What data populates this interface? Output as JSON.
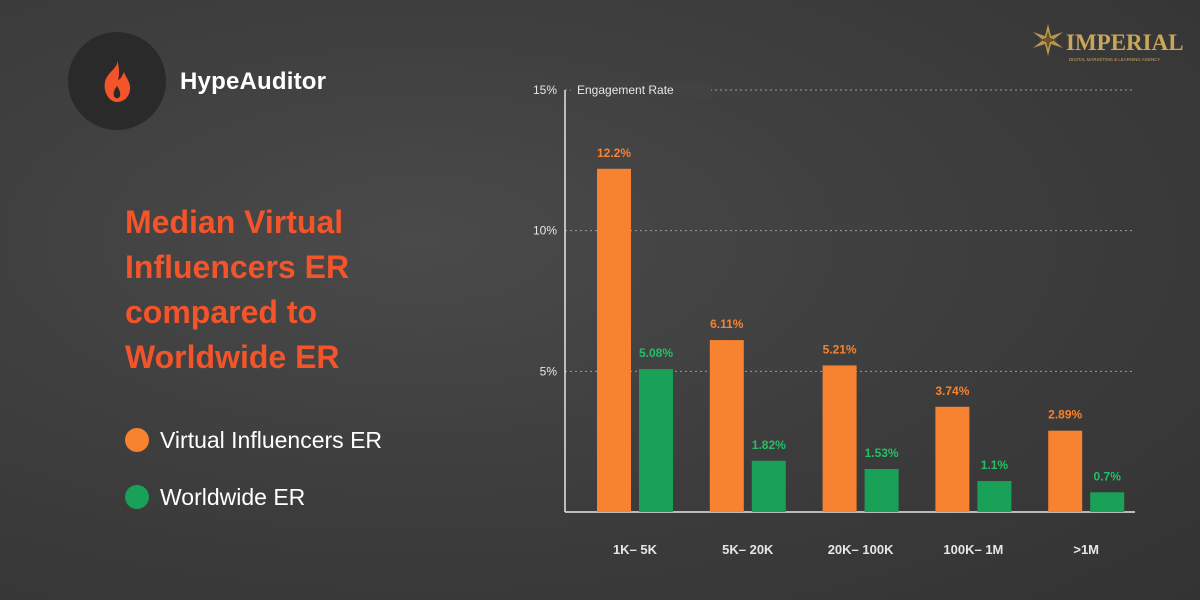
{
  "brand": {
    "name": "HypeAuditor",
    "icon": "flame-icon"
  },
  "partner": {
    "name": "IMPERIAL",
    "tagline": "DIGITAL MARKETING & LEARNING AGENCY",
    "icon": "star-emblem-icon"
  },
  "headline": "Median Virtual Influencers ER compared to Worldwide ER",
  "legend": [
    {
      "label": "Virtual Influencers ER",
      "color": "#f7822f"
    },
    {
      "label": "Worldwide ER",
      "color": "#1aa158"
    }
  ],
  "colors": {
    "virtual": "#f7822f",
    "worldwide": "#1aa158",
    "virtual_label": "#f7822f",
    "worldwide_label": "#22c066",
    "headline": "#f4542a",
    "axis": "#e6e6e6",
    "tick_text": "#e6e6e6",
    "grid": "#9a9a9a"
  },
  "chart_data": {
    "type": "bar",
    "title": "Median Virtual Influencers ER compared to Worldwide ER",
    "ylabel": "Engagement Rate",
    "xlabel": "",
    "categories": [
      "1K– 5K",
      "5K– 20K",
      "20K– 100K",
      "100K– 1M",
      ">1M"
    ],
    "series": [
      {
        "name": "Virtual Influencers ER",
        "values": [
          12.2,
          6.11,
          5.21,
          3.74,
          2.89
        ],
        "labels": [
          "12.2%",
          "6.11%",
          "5.21%",
          "3.74%",
          "2.89%"
        ]
      },
      {
        "name": "Worldwide ER",
        "values": [
          5.08,
          1.82,
          1.53,
          1.1,
          0.7
        ],
        "labels": [
          "5.08%",
          "1.82%",
          "1.53%",
          "1.1%",
          "0.7%"
        ]
      }
    ],
    "yticks": [
      5,
      10,
      15
    ],
    "ytick_labels": [
      "5%",
      "10%",
      "15%"
    ],
    "ylim": [
      0,
      15
    ],
    "grid": true,
    "legend_position": "left"
  }
}
